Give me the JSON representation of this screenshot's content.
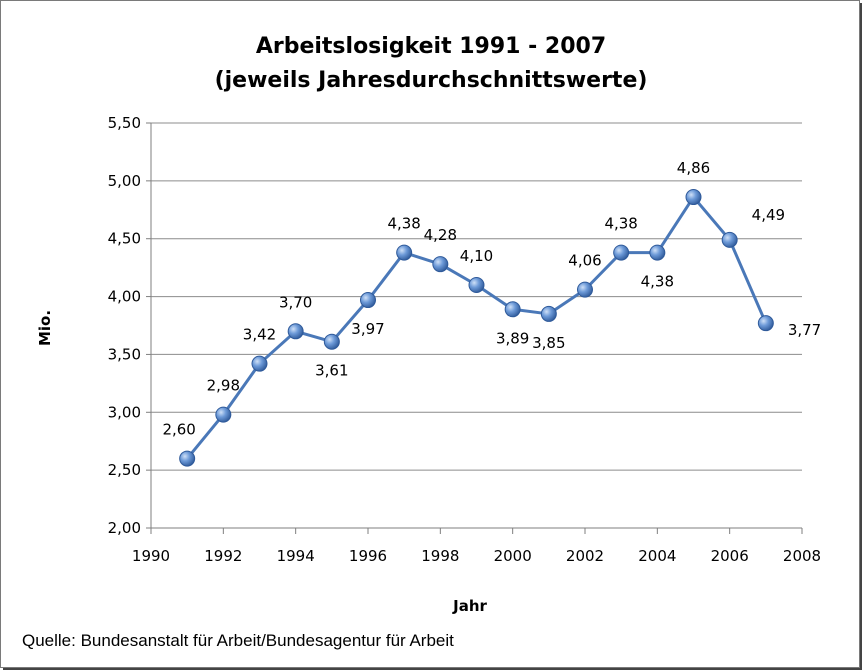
{
  "chart_data": {
    "type": "line",
    "title": "Arbeitslosigkeit 1991 - 2007",
    "subtitle": "(jeweils Jahresdurchschnittswerte)",
    "xlabel": "Jahr",
    "ylabel": "Mio.",
    "xlim": [
      1990,
      2008
    ],
    "ylim": [
      2.0,
      5.5
    ],
    "x_ticks": [
      "1990",
      "1992",
      "1994",
      "1996",
      "1998",
      "2000",
      "2002",
      "2004",
      "2006",
      "2008"
    ],
    "y_ticks": [
      "2,00",
      "2,50",
      "3,00",
      "3,50",
      "4,00",
      "4,50",
      "5,00",
      "5,50"
    ],
    "grid": "horizontal",
    "x": [
      1991,
      1992,
      1993,
      1994,
      1995,
      1996,
      1997,
      1998,
      1999,
      2000,
      2001,
      2002,
      2003,
      2004,
      2005,
      2006,
      2007
    ],
    "values": [
      2.6,
      2.98,
      3.42,
      3.7,
      3.61,
      3.97,
      4.38,
      4.28,
      4.1,
      3.89,
      3.85,
      4.06,
      4.38,
      4.38,
      4.86,
      4.49,
      3.77
    ],
    "data_labels": [
      "2,60",
      "2,98",
      "3,42",
      "3,70",
      "3,61",
      "3,97",
      "4,38",
      "4,28",
      "4,10",
      "3,89",
      "3,85",
      "4,06",
      "4,38",
      "4,38",
      "4,86",
      "4,49",
      "3,77"
    ],
    "line_color": "#4a78b8",
    "marker_color": "#5b8fd6"
  },
  "source": "Quelle: Bundesanstalt für Arbeit/Bundesagentur für Arbeit"
}
